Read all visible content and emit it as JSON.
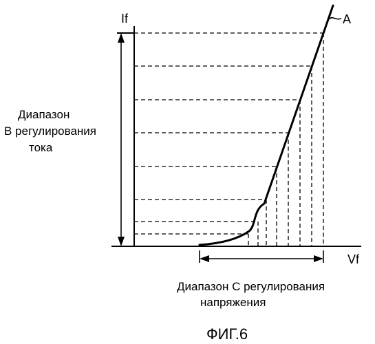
{
  "figure": {
    "y_axis_label": "If",
    "x_axis_label": "Vf",
    "curve_label": "A",
    "current_range_label": [
      "Диапазон",
      "В регулирования",
      "тока"
    ],
    "voltage_range_label": [
      "Диапазон С регулирования",
      "напряжения"
    ],
    "caption": "ФИГ.6"
  }
}
